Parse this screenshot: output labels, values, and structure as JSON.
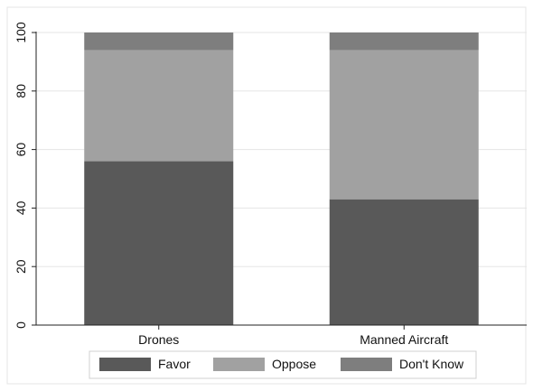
{
  "chart_data": {
    "type": "bar",
    "stacked": true,
    "categories": [
      "Drones",
      "Manned Aircraft"
    ],
    "series": [
      {
        "name": "Favor",
        "values": [
          56,
          43
        ],
        "color": "#595959"
      },
      {
        "name": "Oppose",
        "values": [
          38,
          51
        ],
        "color": "#a1a1a1"
      },
      {
        "name": "Don't Know",
        "values": [
          6,
          6
        ],
        "color": "#7e7e7e"
      }
    ],
    "yticks": [
      0,
      20,
      40,
      60,
      80,
      100
    ],
    "ylim": [
      0,
      100
    ],
    "grid": true,
    "legend": "bottom",
    "title": "",
    "xlabel": "",
    "ylabel": ""
  }
}
